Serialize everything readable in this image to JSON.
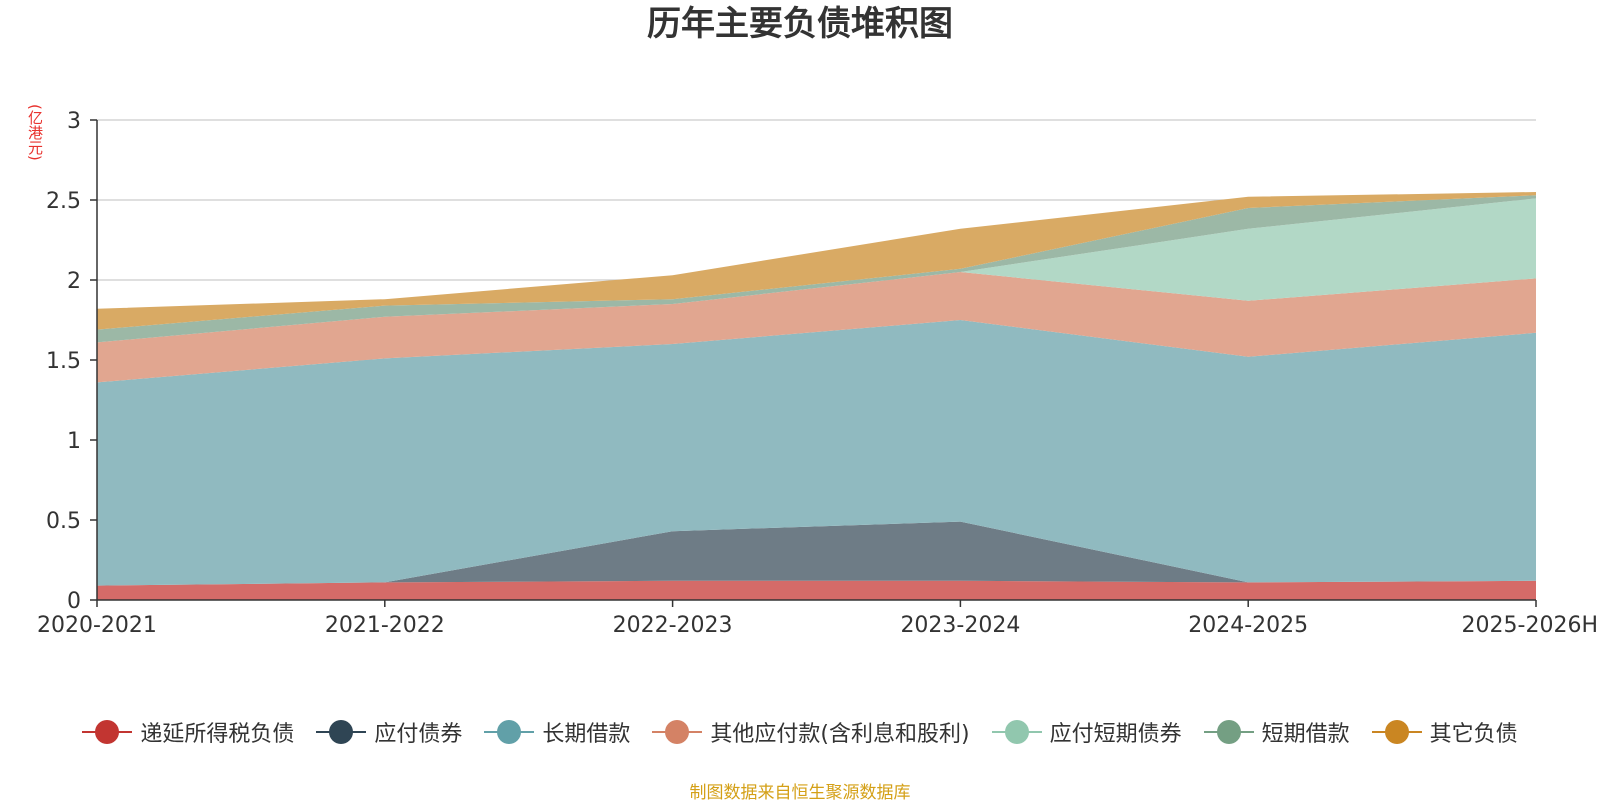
{
  "chart_data": {
    "type": "area",
    "stacked": true,
    "title": "历年主要负债堆积图",
    "unit": "(亿港元)",
    "categories": [
      "2020-2021",
      "2021-2022",
      "2022-2023",
      "2023-2024",
      "2024-2025",
      "2025-2026H"
    ],
    "ylim": [
      0,
      3
    ],
    "yticks": [
      "0",
      "0.5",
      "1",
      "1.5",
      "2",
      "2.5",
      "3"
    ],
    "series": [
      {
        "name": "递延所得税负债",
        "color": "#c23531",
        "fill": "#d56b68",
        "values": [
          0.09,
          0.11,
          0.12,
          0.12,
          0.11,
          0.12
        ]
      },
      {
        "name": "应付债券",
        "color": "#2f4554",
        "fill": "#6e7c86",
        "values": [
          0.0,
          0.0,
          0.31,
          0.37,
          0.0,
          0.0
        ]
      },
      {
        "name": "长期借款",
        "color": "#61a0a8",
        "fill": "#90bac0",
        "values": [
          1.27,
          1.4,
          1.17,
          1.26,
          1.41,
          1.55
        ]
      },
      {
        "name": "其他应付款(含利息和股利)",
        "color": "#d48265",
        "fill": "#e1a690",
        "values": [
          0.25,
          0.26,
          0.25,
          0.3,
          0.35,
          0.34
        ]
      },
      {
        "name": "应付短期债券",
        "color": "#91c7ae",
        "fill": "#b2d8c6",
        "values": [
          0.0,
          0.0,
          0.0,
          0.0,
          0.45,
          0.5
        ]
      },
      {
        "name": "短期借款",
        "color": "#749f83",
        "fill": "#9cb8a6",
        "values": [
          0.08,
          0.07,
          0.03,
          0.02,
          0.13,
          0.02
        ]
      },
      {
        "name": "其它负债",
        "color": "#ca8622",
        "fill": "#d9aa64",
        "values": [
          0.13,
          0.04,
          0.15,
          0.25,
          0.07,
          0.02
        ]
      }
    ]
  },
  "source_note": "制图数据来自恒生聚源数据库"
}
